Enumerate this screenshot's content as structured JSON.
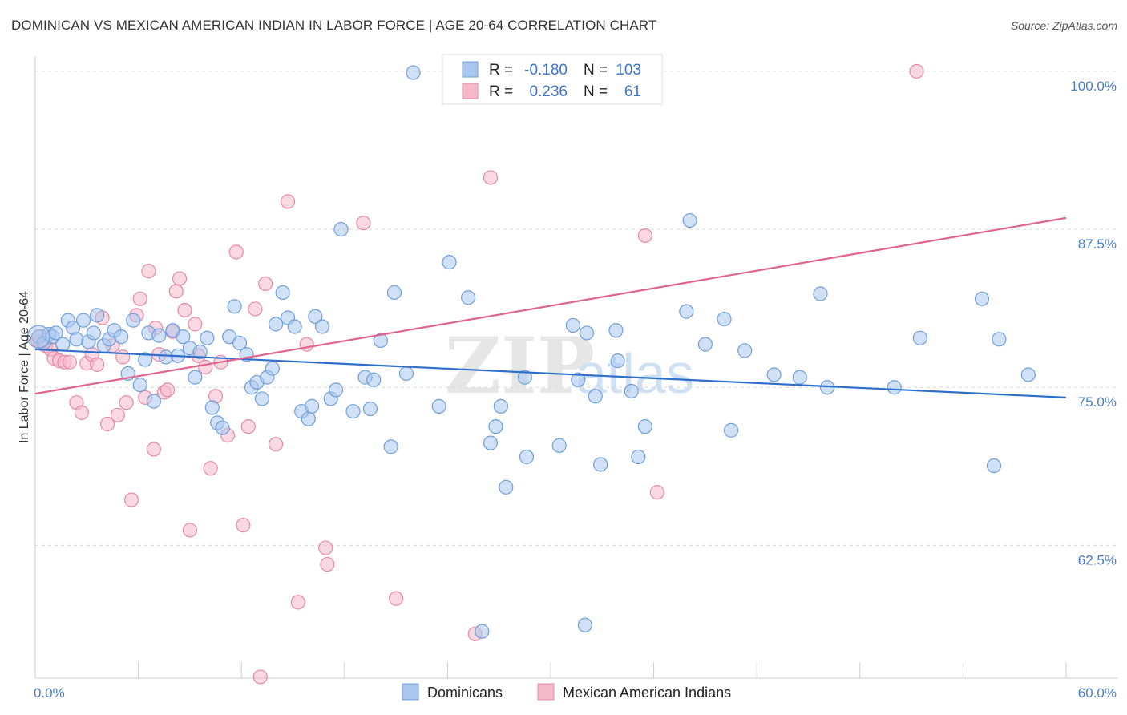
{
  "header": {
    "title": "DOMINICAN VS MEXICAN AMERICAN INDIAN IN LABOR FORCE | AGE 20-64 CORRELATION CHART",
    "source": "Source: ZipAtlas.com"
  },
  "watermark": {
    "zip": "ZIP",
    "atlas": "atlas"
  },
  "legend": {
    "rows": [
      {
        "r_label": "R =",
        "r_value": "-0.180",
        "n_label": "N =",
        "n_value": "103"
      },
      {
        "r_label": "R =",
        "r_value": "0.236",
        "n_label": "N =",
        "n_value": "61"
      }
    ]
  },
  "bottom_legend": {
    "series1": "Dominicans",
    "series2": "Mexican American Indians"
  },
  "colors": {
    "blue_fill": "#a9c7ee",
    "blue_stroke": "#6f9fd8",
    "blue_line": "#2f6fcc",
    "pink_fill": "#f6b8cb",
    "pink_stroke": "#e48aa8",
    "pink_line": "#e0648f",
    "grid": "#d8d8d8",
    "tick_label": "#4a7cc8"
  },
  "chart_data": {
    "type": "scatter",
    "title": "DOMINICAN VS MEXICAN AMERICAN INDIAN IN LABOR FORCE | AGE 20-64 CORRELATION CHART",
    "xlabel": "",
    "ylabel": "In Labor Force | Age 20-64",
    "xlim": [
      0,
      60
    ],
    "ylim": [
      52,
      101.2
    ],
    "x_tick_labels": [
      {
        "value": 0,
        "label": "0.0%"
      },
      {
        "value": 60,
        "label": "60.0%"
      }
    ],
    "y_tick_labels": [
      {
        "value": 100,
        "label": "100.0%"
      },
      {
        "value": 87.5,
        "label": "87.5%"
      },
      {
        "value": 75,
        "label": "75.0%"
      },
      {
        "value": 62.5,
        "label": "62.5%"
      }
    ],
    "grid": true,
    "legend_position": "top-center",
    "series": [
      {
        "name": "Dominicans",
        "r": -0.18,
        "n": 103,
        "trend": {
          "x": [
            0,
            60
          ],
          "y": [
            78.0,
            74.2
          ]
        },
        "points": [
          [
            0.2,
            79.0
          ],
          [
            0.5,
            78.5
          ],
          [
            0.8,
            79.2
          ],
          [
            1.0,
            79.0
          ],
          [
            1.2,
            79.3
          ],
          [
            1.6,
            78.4
          ],
          [
            1.9,
            80.3
          ],
          [
            2.2,
            79.7
          ],
          [
            2.4,
            78.8
          ],
          [
            2.8,
            80.3
          ],
          [
            3.1,
            78.6
          ],
          [
            3.4,
            79.3
          ],
          [
            3.6,
            80.7
          ],
          [
            4.0,
            78.3
          ],
          [
            4.3,
            78.8
          ],
          [
            4.6,
            79.5
          ],
          [
            5.0,
            79.0
          ],
          [
            5.4,
            76.1
          ],
          [
            5.7,
            80.3
          ],
          [
            6.1,
            75.2
          ],
          [
            6.4,
            77.2
          ],
          [
            6.6,
            79.3
          ],
          [
            6.9,
            73.9
          ],
          [
            7.2,
            79.1
          ],
          [
            7.6,
            77.4
          ],
          [
            8.0,
            79.5
          ],
          [
            8.3,
            77.5
          ],
          [
            8.6,
            79.0
          ],
          [
            9.0,
            78.1
          ],
          [
            9.3,
            75.8
          ],
          [
            9.6,
            77.8
          ],
          [
            10.0,
            78.9
          ],
          [
            10.3,
            73.4
          ],
          [
            10.6,
            72.2
          ],
          [
            10.9,
            71.8
          ],
          [
            11.3,
            79.0
          ],
          [
            11.6,
            81.4
          ],
          [
            11.9,
            78.5
          ],
          [
            12.3,
            77.6
          ],
          [
            12.6,
            75.0
          ],
          [
            12.9,
            75.4
          ],
          [
            13.2,
            74.1
          ],
          [
            13.5,
            75.8
          ],
          [
            13.8,
            76.5
          ],
          [
            14.0,
            80.0
          ],
          [
            14.4,
            82.5
          ],
          [
            14.7,
            80.5
          ],
          [
            15.1,
            79.8
          ],
          [
            15.5,
            73.1
          ],
          [
            15.9,
            72.5
          ],
          [
            16.1,
            73.5
          ],
          [
            16.3,
            80.6
          ],
          [
            16.7,
            79.8
          ],
          [
            17.2,
            74.1
          ],
          [
            17.5,
            74.8
          ],
          [
            17.8,
            87.5
          ],
          [
            18.5,
            73.1
          ],
          [
            19.2,
            75.8
          ],
          [
            19.5,
            73.3
          ],
          [
            20.1,
            78.7
          ],
          [
            20.7,
            70.3
          ],
          [
            20.9,
            82.5
          ],
          [
            21.6,
            76.1
          ],
          [
            22.0,
            99.9
          ],
          [
            23.5,
            73.5
          ],
          [
            24.1,
            84.9
          ],
          [
            25.2,
            82.1
          ],
          [
            26.5,
            70.6
          ],
          [
            26.8,
            71.9
          ],
          [
            27.1,
            73.5
          ],
          [
            27.4,
            67.1
          ],
          [
            28.6,
            69.5
          ],
          [
            30.5,
            70.4
          ],
          [
            31.3,
            79.9
          ],
          [
            31.6,
            75.6
          ],
          [
            32.1,
            79.3
          ],
          [
            32.6,
            74.3
          ],
          [
            32.9,
            68.9
          ],
          [
            33.8,
            79.5
          ],
          [
            33.9,
            77.1
          ],
          [
            34.7,
            74.7
          ],
          [
            35.1,
            69.5
          ],
          [
            35.5,
            71.9
          ],
          [
            37.9,
            81.0
          ],
          [
            38.1,
            88.2
          ],
          [
            39.0,
            78.4
          ],
          [
            40.1,
            80.4
          ],
          [
            40.5,
            71.6
          ],
          [
            41.3,
            77.9
          ],
          [
            43.0,
            76.0
          ],
          [
            44.5,
            75.8
          ],
          [
            45.7,
            82.4
          ],
          [
            46.1,
            75.0
          ],
          [
            50.0,
            75.0
          ],
          [
            51.5,
            78.9
          ],
          [
            55.1,
            82.0
          ],
          [
            55.8,
            68.8
          ],
          [
            56.1,
            78.8
          ],
          [
            57.8,
            76.0
          ],
          [
            19.7,
            75.6
          ],
          [
            26.0,
            55.7
          ],
          [
            28.5,
            75.8
          ],
          [
            32.0,
            56.2
          ]
        ]
      },
      {
        "name": "Mexican American Indians",
        "r": 0.236,
        "n": 61,
        "trend": {
          "x": [
            0,
            60
          ],
          "y": [
            74.5,
            88.4
          ]
        },
        "points": [
          [
            0.3,
            78.6
          ],
          [
            0.6,
            78.3
          ],
          [
            0.9,
            78.0
          ],
          [
            1.1,
            77.3
          ],
          [
            1.4,
            77.1
          ],
          [
            1.7,
            77.0
          ],
          [
            2.0,
            77.0
          ],
          [
            2.4,
            73.8
          ],
          [
            2.7,
            73.0
          ],
          [
            3.0,
            76.9
          ],
          [
            3.3,
            77.6
          ],
          [
            3.6,
            76.8
          ],
          [
            3.9,
            80.5
          ],
          [
            4.2,
            72.1
          ],
          [
            4.5,
            78.3
          ],
          [
            4.8,
            72.8
          ],
          [
            5.1,
            77.4
          ],
          [
            5.3,
            73.8
          ],
          [
            5.6,
            66.1
          ],
          [
            5.9,
            80.7
          ],
          [
            6.1,
            82.0
          ],
          [
            6.4,
            74.2
          ],
          [
            6.6,
            84.2
          ],
          [
            6.9,
            70.1
          ],
          [
            7.2,
            77.6
          ],
          [
            7.5,
            74.6
          ],
          [
            7.7,
            74.8
          ],
          [
            8.0,
            79.4
          ],
          [
            8.2,
            82.6
          ],
          [
            8.4,
            83.6
          ],
          [
            8.7,
            81.1
          ],
          [
            9.0,
            63.7
          ],
          [
            9.3,
            80.0
          ],
          [
            9.5,
            77.5
          ],
          [
            9.9,
            76.6
          ],
          [
            10.2,
            68.6
          ],
          [
            10.5,
            74.3
          ],
          [
            10.8,
            77.0
          ],
          [
            11.2,
            71.2
          ],
          [
            11.7,
            85.7
          ],
          [
            12.1,
            64.1
          ],
          [
            12.4,
            71.9
          ],
          [
            12.8,
            81.2
          ],
          [
            13.4,
            83.2
          ],
          [
            14.0,
            70.5
          ],
          [
            14.7,
            89.7
          ],
          [
            15.3,
            58.0
          ],
          [
            15.8,
            78.4
          ],
          [
            16.9,
            62.3
          ],
          [
            19.1,
            88.0
          ],
          [
            21.0,
            58.3
          ],
          [
            25.6,
            55.5
          ],
          [
            26.5,
            91.6
          ],
          [
            30.6,
            100.0
          ],
          [
            31.2,
            100.0
          ],
          [
            35.5,
            87.0
          ],
          [
            36.2,
            66.7
          ],
          [
            51.3,
            100.0
          ],
          [
            13.1,
            52.1
          ],
          [
            17.0,
            61.0
          ],
          [
            7.0,
            79.7
          ]
        ]
      }
    ]
  }
}
